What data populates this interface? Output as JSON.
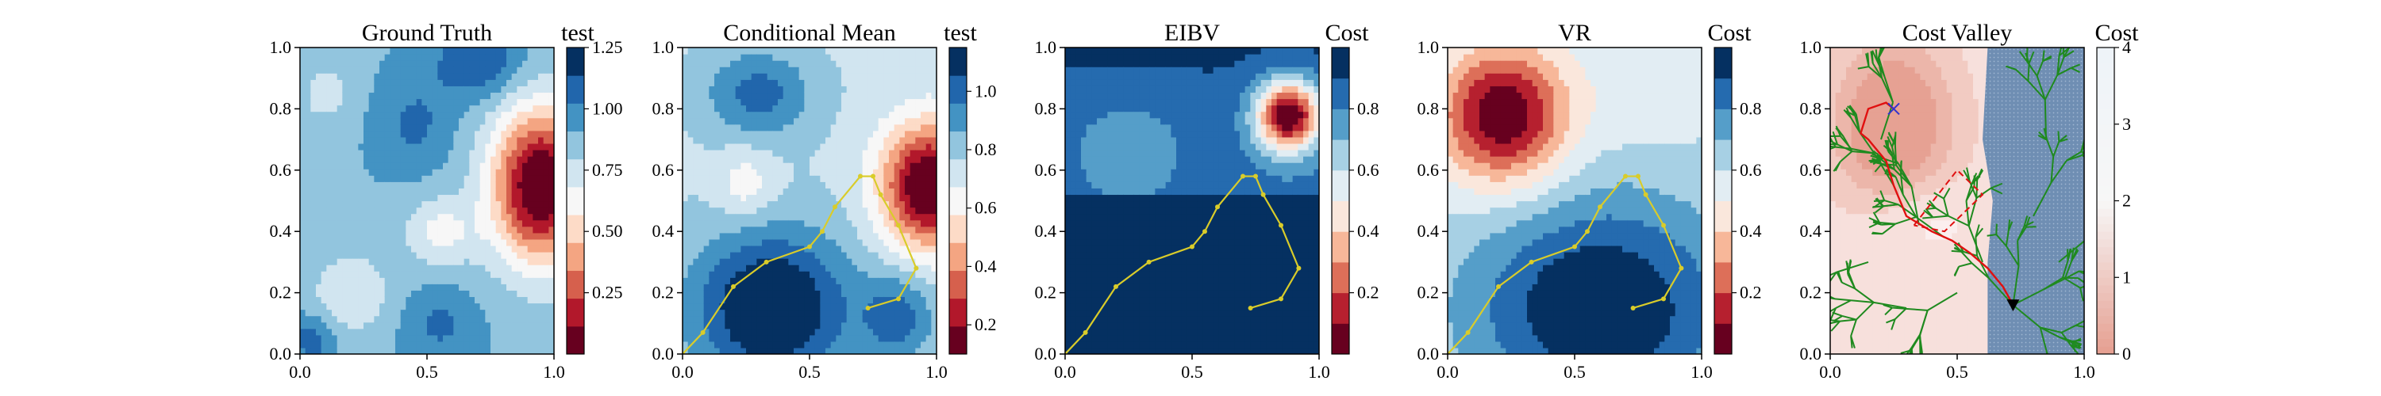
{
  "chart_data": [
    {
      "type": "heatmap",
      "title": "Ground Truth",
      "colorbar_label": "test",
      "xlim": [
        0.0,
        1.0
      ],
      "ylim": [
        0.0,
        1.0
      ],
      "xticks": [
        "0.0",
        "0.5",
        "1.0"
      ],
      "yticks": [
        "0.0",
        "0.2",
        "0.4",
        "0.6",
        "0.8",
        "1.0"
      ],
      "colorbar_range": [
        0.0,
        1.25
      ],
      "colorbar_ticks": [
        "0.25",
        "0.50",
        "0.75",
        "1.00",
        "1.25"
      ],
      "field": {
        "base": 0.9,
        "blobs": [
          {
            "x": 0.95,
            "y": 0.55,
            "sx": 0.14,
            "sy": 0.18,
            "a": -0.95
          },
          {
            "x": 0.55,
            "y": 0.4,
            "sx": 0.1,
            "sy": 0.08,
            "a": -0.25
          },
          {
            "x": 0.2,
            "y": 0.2,
            "sx": 0.12,
            "sy": 0.1,
            "a": -0.2
          },
          {
            "x": 0.1,
            "y": 0.85,
            "sx": 0.08,
            "sy": 0.08,
            "a": -0.15
          },
          {
            "x": 0.7,
            "y": 0.95,
            "sx": 0.12,
            "sy": 0.08,
            "a": 0.25
          },
          {
            "x": 0.45,
            "y": 0.75,
            "sx": 0.1,
            "sy": 0.1,
            "a": 0.15
          },
          {
            "x": 0.55,
            "y": 0.1,
            "sx": 0.1,
            "sy": 0.08,
            "a": 0.15
          },
          {
            "x": 0.05,
            "y": 0.05,
            "sx": 0.06,
            "sy": 0.06,
            "a": 0.2
          }
        ]
      }
    },
    {
      "type": "heatmap",
      "title": "Conditional Mean",
      "colorbar_label": "test",
      "xlim": [
        0.0,
        1.0
      ],
      "ylim": [
        0.0,
        1.0
      ],
      "xticks": [
        "0.0",
        "0.5",
        "1.0"
      ],
      "yticks": [
        "0.0",
        "0.2",
        "0.4",
        "0.6",
        "0.8",
        "1.0"
      ],
      "colorbar_range": [
        0.1,
        1.15
      ],
      "colorbar_ticks": [
        "0.2",
        "0.4",
        "0.6",
        "0.8",
        "1.0"
      ],
      "field": {
        "base": 0.75,
        "blobs": [
          {
            "x": 0.97,
            "y": 0.55,
            "sx": 0.13,
            "sy": 0.14,
            "a": -0.7
          },
          {
            "x": 0.35,
            "y": 0.15,
            "sx": 0.22,
            "sy": 0.18,
            "a": 0.45
          },
          {
            "x": 0.85,
            "y": 0.12,
            "sx": 0.1,
            "sy": 0.1,
            "a": 0.25
          },
          {
            "x": 0.3,
            "y": 0.85,
            "sx": 0.15,
            "sy": 0.1,
            "a": 0.25
          },
          {
            "x": 0.25,
            "y": 0.55,
            "sx": 0.08,
            "sy": 0.08,
            "a": -0.15
          }
        ]
      },
      "path": {
        "x": [
          0.0,
          0.08,
          0.2,
          0.33,
          0.5,
          0.55,
          0.6,
          0.7,
          0.75,
          0.78,
          0.85,
          0.92,
          0.85,
          0.73
        ],
        "y": [
          0.0,
          0.07,
          0.22,
          0.3,
          0.35,
          0.4,
          0.48,
          0.58,
          0.58,
          0.52,
          0.42,
          0.28,
          0.18,
          0.15
        ]
      }
    },
    {
      "type": "heatmap",
      "title": "EIBV",
      "colorbar_label": "Cost",
      "xlim": [
        0.0,
        1.0
      ],
      "ylim": [
        0.0,
        1.0
      ],
      "xticks": [
        "0.0",
        "0.5",
        "1.0"
      ],
      "yticks": [
        "0.0",
        "0.2",
        "0.4",
        "0.6",
        "0.8",
        "1.0"
      ],
      "colorbar_range": [
        0.0,
        1.0
      ],
      "colorbar_ticks": [
        "0.2",
        "0.4",
        "0.6",
        "0.8"
      ],
      "field": {
        "base": 1.0,
        "upper": {
          "threshold": 0.52,
          "value": 0.82
        },
        "blobs": [
          {
            "x": 0.88,
            "y": 0.78,
            "sx": 0.09,
            "sy": 0.08,
            "a": -0.9
          },
          {
            "x": 0.25,
            "y": 0.7,
            "sx": 0.15,
            "sy": 0.1,
            "a": -0.12
          }
        ]
      },
      "path": {
        "x": [
          0.0,
          0.08,
          0.2,
          0.33,
          0.5,
          0.55,
          0.6,
          0.7,
          0.75,
          0.78,
          0.85,
          0.92,
          0.85,
          0.73
        ],
        "y": [
          0.0,
          0.07,
          0.22,
          0.3,
          0.35,
          0.4,
          0.48,
          0.58,
          0.58,
          0.52,
          0.42,
          0.28,
          0.18,
          0.15
        ]
      }
    },
    {
      "type": "heatmap",
      "title": "VR",
      "colorbar_label": "Cost",
      "xlim": [
        0.0,
        1.0
      ],
      "ylim": [
        0.0,
        1.0
      ],
      "xticks": [
        "0.0",
        "0.5",
        "1.0"
      ],
      "yticks": [
        "0.0",
        "0.2",
        "0.4",
        "0.6",
        "0.8",
        "1.0"
      ],
      "colorbar_range": [
        0.0,
        1.0
      ],
      "colorbar_ticks": [
        "0.2",
        "0.4",
        "0.6",
        "0.8"
      ],
      "field": {
        "base": 0.6,
        "blobs": [
          {
            "x": 0.22,
            "y": 0.78,
            "sx": 0.18,
            "sy": 0.16,
            "a": -0.6
          },
          {
            "x": 0.6,
            "y": 0.15,
            "sx": 0.35,
            "sy": 0.25,
            "a": 0.42
          },
          {
            "x": 0.8,
            "y": 0.85,
            "sx": 0.15,
            "sy": 0.12,
            "a": -0.1
          }
        ]
      },
      "path": {
        "x": [
          0.0,
          0.08,
          0.2,
          0.33,
          0.5,
          0.55,
          0.6,
          0.7,
          0.75,
          0.78,
          0.85,
          0.92,
          0.85,
          0.73
        ],
        "y": [
          0.0,
          0.07,
          0.22,
          0.3,
          0.35,
          0.4,
          0.48,
          0.58,
          0.58,
          0.52,
          0.42,
          0.28,
          0.18,
          0.15
        ]
      }
    },
    {
      "type": "heatmap",
      "title": "Cost Valley",
      "colorbar_label": "Cost",
      "xlim": [
        0.0,
        1.0
      ],
      "ylim": [
        0.0,
        1.0
      ],
      "xticks": [
        "0.0",
        "0.5",
        "1.0"
      ],
      "yticks": [
        "0.0",
        "0.2",
        "0.4",
        "0.6",
        "0.8",
        "1.0"
      ],
      "colorbar_range": [
        0.0,
        4.0
      ],
      "colorbar_ticks": [
        "0",
        "1",
        "2",
        "3",
        "4"
      ],
      "obstacle_x": [
        0.62,
        0.62,
        0.64,
        0.6,
        0.62
      ],
      "obstacle_y": [
        0.0,
        0.3,
        0.5,
        0.7,
        1.0
      ],
      "polygon": {
        "x": [
          0.33,
          0.5,
          0.6,
          0.45,
          0.33
        ],
        "y": [
          0.42,
          0.6,
          0.52,
          0.4,
          0.42
        ]
      },
      "route": {
        "x": [
          0.72,
          0.68,
          0.62,
          0.55,
          0.48,
          0.4,
          0.3,
          0.25,
          0.22,
          0.18,
          0.15,
          0.12,
          0.15,
          0.22,
          0.25
        ],
        "y": [
          0.16,
          0.22,
          0.28,
          0.33,
          0.37,
          0.4,
          0.45,
          0.55,
          0.63,
          0.67,
          0.7,
          0.72,
          0.8,
          0.82,
          0.8
        ]
      },
      "goal": {
        "x": 0.25,
        "y": 0.8
      },
      "start": {
        "x": 0.72,
        "y": 0.16
      }
    }
  ],
  "colors": {
    "tree": "#1f8a1f",
    "path": "#d9cc2a",
    "route": "#e01010",
    "goal": "#3333cc",
    "start": "#000000"
  }
}
